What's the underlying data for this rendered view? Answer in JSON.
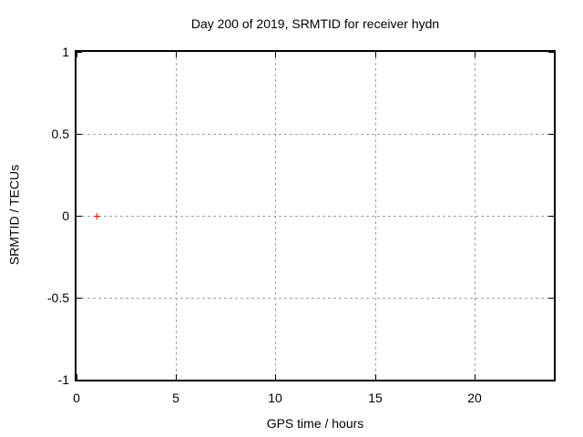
{
  "chart_data": {
    "type": "scatter",
    "title": "Day 200 of 2019, SRMTID for receiver hydn",
    "xlabel": "GPS time / hours",
    "ylabel": "SRMTID / TECUs",
    "xlim": [
      0,
      24
    ],
    "ylim": [
      -1,
      1
    ],
    "xticks": [
      0,
      5,
      10,
      15,
      20
    ],
    "xtick_labels": [
      "0",
      "5",
      "10",
      "15",
      "20"
    ],
    "yticks": [
      1,
      0.5,
      0,
      -0.5,
      -1
    ],
    "ytick_labels": [
      "1",
      "0.5",
      "0",
      "-0.5",
      "-1"
    ],
    "grid": true,
    "grid_style": "dashed",
    "legend": "none",
    "series": [
      {
        "name": "SRMTID",
        "marker": "plus",
        "color": "#ff0000",
        "points": [
          {
            "x": 1,
            "y": 0
          }
        ]
      }
    ],
    "colors": {
      "background": "#ffffff",
      "border": "#000000",
      "grid": "#a0a0a0",
      "text": "#000000",
      "point": "#ff0000"
    }
  }
}
